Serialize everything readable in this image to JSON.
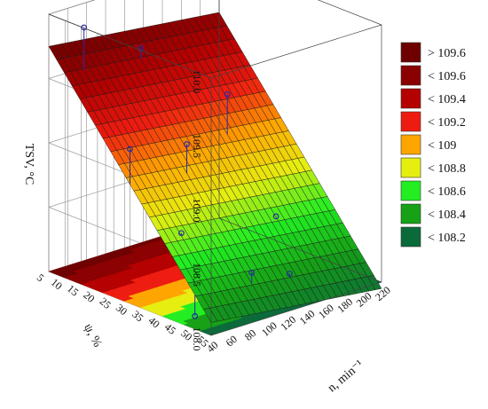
{
  "chart_data": {
    "type": "surface3d",
    "xlabel": "n, min⁻¹",
    "ylabel": "ψ, %",
    "zlabel": "TSV, °C",
    "x_ticks": [
      "40",
      "60",
      "80",
      "100",
      "120",
      "140",
      "160",
      "180",
      "200",
      "220"
    ],
    "y_ticks": [
      "5",
      "10",
      "15",
      "20",
      "25",
      "30",
      "35",
      "40",
      "45",
      "50",
      "55"
    ],
    "z_ticks": [
      "108.0",
      "108.5",
      "109.0",
      "109.5",
      "110.0"
    ],
    "xlim": [
      40,
      220
    ],
    "ylim": [
      5,
      55
    ],
    "zlim": [
      108.0,
      110.0
    ],
    "surface_corners": {
      "n40_psi5": 109.75,
      "n220_psi5": 109.6,
      "n40_psi55": 108.1,
      "n220_psi55": 107.95
    },
    "legend": {
      "placement": "right",
      "entries": [
        {
          "label": "> 109.6",
          "color": "#6e0000"
        },
        {
          "label": "< 109.6",
          "color": "#8b0000"
        },
        {
          "label": "< 109.4",
          "color": "#b50000"
        },
        {
          "label": "< 109.2",
          "color": "#ee1c10"
        },
        {
          "label": "< 109",
          "color": "#ffa500"
        },
        {
          "label": "< 108.8",
          "color": "#e6ee10"
        },
        {
          "label": "< 108.6",
          "color": "#22ee22"
        },
        {
          "label": "< 108.4",
          "color": "#16a116"
        },
        {
          "label": "< 108.2",
          "color": "#0b6a3a"
        }
      ]
    },
    "data_points": [
      {
        "n": 60,
        "psi": 10,
        "tsv": 109.9
      },
      {
        "n": 120,
        "psi": 10,
        "tsv": 109.6
      },
      {
        "n": 40,
        "psi": 30,
        "tsv": 109.2
      },
      {
        "n": 100,
        "psi": 30,
        "tsv": 109.1
      },
      {
        "n": 160,
        "psi": 25,
        "tsv": 109.3
      },
      {
        "n": 60,
        "psi": 40,
        "tsv": 108.6
      },
      {
        "n": 100,
        "psi": 50,
        "tsv": 108.3
      },
      {
        "n": 160,
        "psi": 40,
        "tsv": 108.5
      },
      {
        "n": 140,
        "psi": 50,
        "tsv": 108.2
      },
      {
        "n": 40,
        "psi": 50,
        "tsv": 108.1
      }
    ]
  }
}
